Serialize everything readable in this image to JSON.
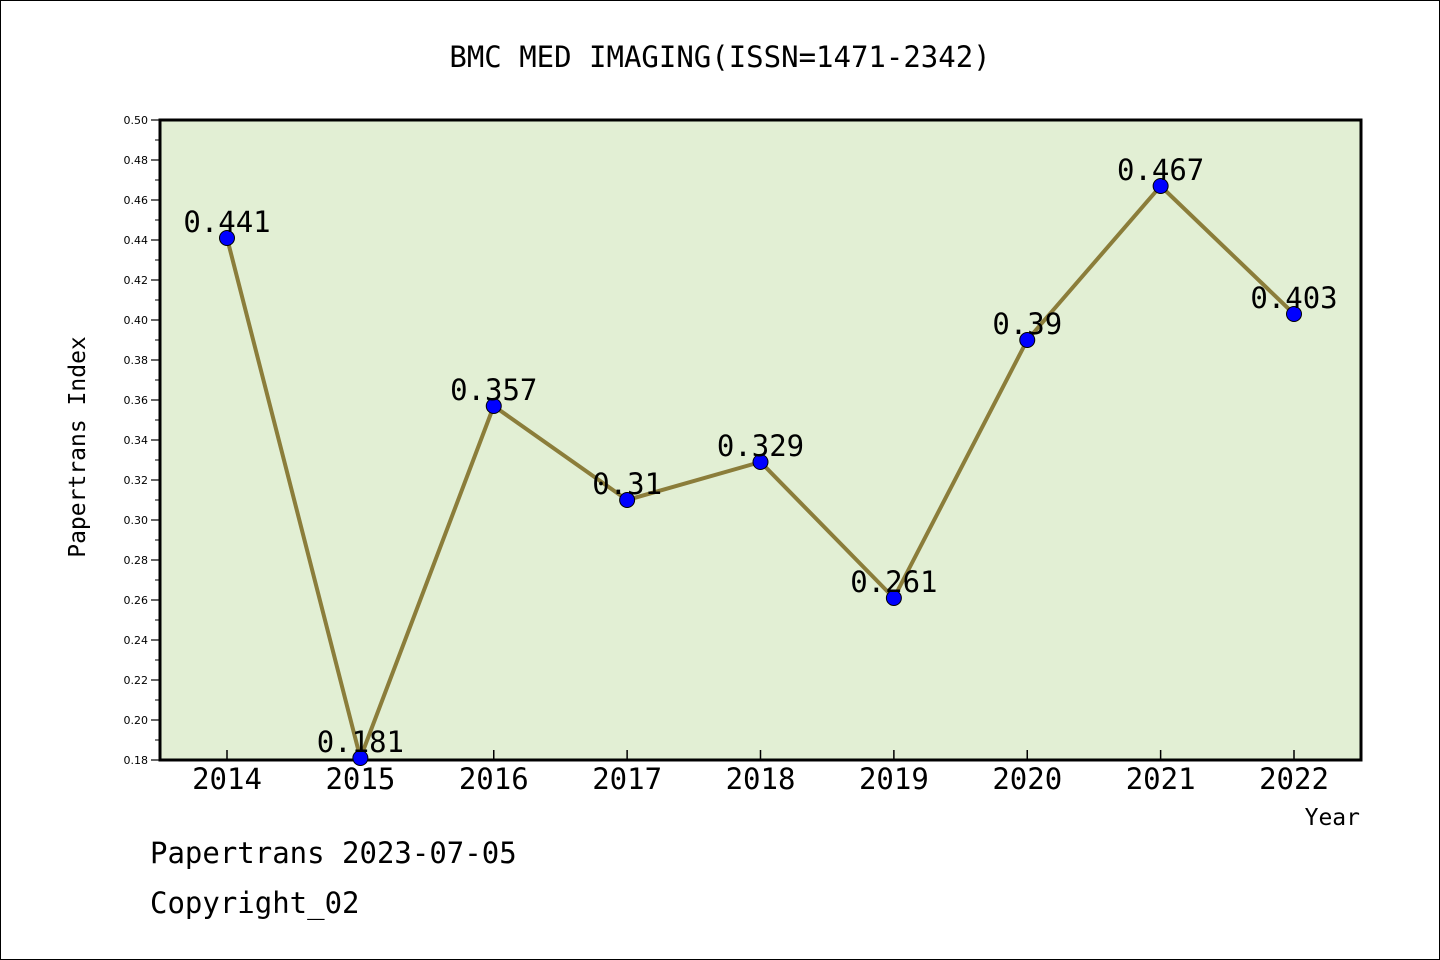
{
  "footer": {
    "line1": "Papertrans 2023-07-05",
    "line2": "Copyright_02"
  },
  "chart_data": {
    "type": "line",
    "title": "BMC MED IMAGING(ISSN=1471-2342)",
    "xlabel": "Year",
    "ylabel": "Papertrans Index",
    "categories": [
      "2014",
      "2015",
      "2016",
      "2017",
      "2018",
      "2019",
      "2020",
      "2021",
      "2022"
    ],
    "values": [
      0.441,
      0.181,
      0.357,
      0.31,
      0.329,
      0.261,
      0.39,
      0.467,
      0.403
    ],
    "data_labels": [
      "0.441",
      "0.181",
      "0.357",
      "0.31",
      "0.329",
      "0.261",
      "0.39",
      "0.467",
      "0.403"
    ],
    "ylim": [
      0.18,
      0.5
    ],
    "yticks": [
      "0.18",
      "0.20",
      "0.22",
      "0.24",
      "0.26",
      "0.28",
      "0.30",
      "0.32",
      "0.34",
      "0.36",
      "0.38",
      "0.40",
      "0.42",
      "0.44",
      "0.46",
      "0.48",
      "0.50"
    ],
    "grid": false,
    "legend": "none",
    "colors": {
      "plot_background": "#e2efd4",
      "line": "#8b7d3a",
      "marker": "#0000ff"
    }
  }
}
